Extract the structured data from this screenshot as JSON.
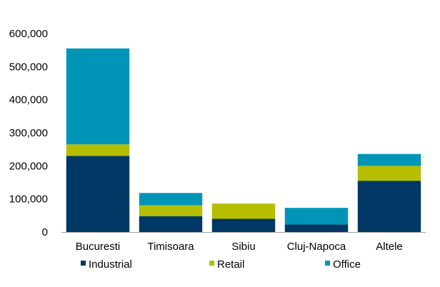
{
  "chart_data": {
    "type": "bar",
    "stacked": true,
    "categories": [
      "Bucuresti",
      "Timisoara",
      "Sibiu",
      "Cluj-Napoca",
      "Altele"
    ],
    "series": [
      {
        "name": "Industrial",
        "color": "#003764",
        "values": [
          230000,
          48000,
          40000,
          23000,
          155000
        ]
      },
      {
        "name": "Retail",
        "color": "#b5be00",
        "values": [
          35000,
          33000,
          46000,
          0,
          45000
        ]
      },
      {
        "name": "Office",
        "color": "#0095b6",
        "values": [
          290000,
          37000,
          0,
          50000,
          36000
        ]
      }
    ],
    "ylim": [
      0,
      600000
    ],
    "yticks": [
      0,
      100000,
      200000,
      300000,
      400000,
      500000,
      600000
    ],
    "ytick_labels": [
      "0",
      "100,000",
      "200,000",
      "300,000",
      "400,000",
      "500,000",
      "600,000"
    ],
    "grid": false,
    "legend_position": "bottom",
    "title": "",
    "xlabel": "",
    "ylabel": ""
  }
}
